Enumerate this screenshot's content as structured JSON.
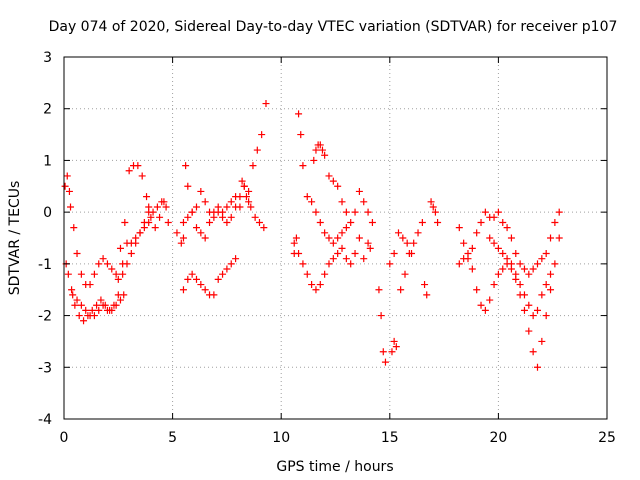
{
  "chart_data": {
    "type": "scatter",
    "title": "Day 074 of 2020, Sidereal Day-to-day VTEC variation (SDTVAR) for receiver p107",
    "xlabel": "GPS time / hours",
    "ylabel": "SDTVAR / TECUs",
    "xlim": [
      0,
      25
    ],
    "ylim": [
      -4,
      3
    ],
    "xticks": [
      "0",
      "5",
      "10",
      "15",
      "20",
      "25"
    ],
    "yticks": [
      "-4",
      "-3",
      "-2",
      "-1",
      "0",
      "1",
      "2",
      "3"
    ],
    "grid": true,
    "legend": "none",
    "marker": "+",
    "colors": {
      "series": "#ff0000",
      "grid": "#a0a0a0",
      "axis": "#000000"
    },
    "series": [
      {
        "name": "SDTVAR",
        "x": [
          0.05,
          0.15,
          0.25,
          0.3,
          0.45,
          0.6,
          0.8,
          1.0,
          1.2,
          1.4,
          1.6,
          1.8,
          2.0,
          2.2,
          2.4,
          2.6,
          2.8,
          3.0,
          3.2,
          3.4,
          3.6,
          3.8,
          3.9,
          4.0,
          4.2,
          4.4,
          4.6,
          4.8,
          0.1,
          0.2,
          0.35,
          0.5,
          0.7,
          0.9,
          1.1,
          1.3,
          1.5,
          1.7,
          1.9,
          2.1,
          2.3,
          2.5,
          2.7,
          2.9,
          3.1,
          3.3,
          3.5,
          3.7,
          3.9,
          4.1,
          4.3,
          4.5,
          4.7,
          0.4,
          0.6,
          0.8,
          1.0,
          1.2,
          1.4,
          1.6,
          1.8,
          2.0,
          2.2,
          2.4,
          2.6,
          2.75,
          2.5,
          2.7,
          2.9,
          3.1,
          3.3,
          3.5,
          3.7,
          3.9,
          5.2,
          5.4,
          5.5,
          5.6,
          5.7,
          5.9,
          6.1,
          6.3,
          6.5,
          6.7,
          6.9,
          7.1,
          7.3,
          7.5,
          7.7,
          7.9,
          8.1,
          8.3,
          8.5,
          8.7,
          8.9,
          9.1,
          9.3,
          5.5,
          5.7,
          5.9,
          6.1,
          6.3,
          6.5,
          6.7,
          6.9,
          7.1,
          7.3,
          7.5,
          7.7,
          7.9,
          8.1,
          8.3,
          8.5,
          5.5,
          5.7,
          5.9,
          6.1,
          6.3,
          6.5,
          6.7,
          6.9,
          7.1,
          7.3,
          7.5,
          7.7,
          7.9,
          8.2,
          8.4,
          8.6,
          8.8,
          9.0,
          9.2,
          10.6,
          10.7,
          10.8,
          10.9,
          11.0,
          11.2,
          11.4,
          11.6,
          11.8,
          12.0,
          12.2,
          12.4,
          12.6,
          12.8,
          13.0,
          13.2,
          13.4,
          13.6,
          13.8,
          14.0,
          14.2,
          10.6,
          10.8,
          11.0,
          11.2,
          11.4,
          11.6,
          11.8,
          12.0,
          12.2,
          12.4,
          12.6,
          12.8,
          13.0,
          13.2,
          13.4,
          13.6,
          13.8,
          14.0,
          11.5,
          11.6,
          11.7,
          11.8,
          11.9,
          12.0,
          12.2,
          12.4,
          12.6,
          12.8,
          13.0,
          14.1,
          14.5,
          14.6,
          14.7,
          14.8,
          15.0,
          15.1,
          15.2,
          15.3,
          15.5,
          15.7,
          15.9,
          16.1,
          16.3,
          16.5,
          16.6,
          16.7,
          15.2,
          15.4,
          15.6,
          15.8,
          16.0,
          16.9,
          17.0,
          17.1,
          17.2,
          18.2,
          18.4,
          18.6,
          18.8,
          19.0,
          19.2,
          19.4,
          19.6,
          19.8,
          20.0,
          20.2,
          20.4,
          20.6,
          20.8,
          21.0,
          21.2,
          21.4,
          21.6,
          21.8,
          22.0,
          22.2,
          22.4,
          22.6,
          22.8,
          18.2,
          18.4,
          18.6,
          18.8,
          19.0,
          19.2,
          19.4,
          19.6,
          19.8,
          20.0,
          20.2,
          20.4,
          20.6,
          20.8,
          21.0,
          21.2,
          21.4,
          21.6,
          21.8,
          22.0,
          22.2,
          22.4,
          22.6,
          22.8,
          19.6,
          19.8,
          20.0,
          20.2,
          20.4,
          20.6,
          20.8,
          21.0,
          21.2,
          21.4,
          21.6,
          21.8,
          22.0,
          22.2,
          22.4
        ],
        "y": [
          0.5,
          0.7,
          0.4,
          0.1,
          -0.3,
          -0.8,
          -1.2,
          -1.4,
          -1.4,
          -1.2,
          -1.0,
          -0.9,
          -1.0,
          -1.1,
          -1.2,
          -0.7,
          -0.2,
          0.8,
          0.9,
          0.9,
          0.7,
          0.3,
          0.1,
          -0.1,
          -0.3,
          -0.1,
          0.2,
          -0.2,
          -1.0,
          -1.2,
          -1.5,
          -1.8,
          -2.0,
          -2.1,
          -2.0,
          -1.9,
          -1.8,
          -1.7,
          -1.8,
          -1.9,
          -1.8,
          -1.6,
          -1.0,
          -0.6,
          -0.6,
          -0.5,
          -0.4,
          -0.3,
          -0.2,
          0.0,
          0.1,
          0.2,
          0.1,
          -1.6,
          -1.7,
          -1.8,
          -1.9,
          -2.0,
          -2.0,
          -1.9,
          -1.8,
          -1.9,
          -1.9,
          -1.8,
          -1.7,
          -1.6,
          -1.3,
          -1.2,
          -1.0,
          -0.8,
          -0.6,
          -0.4,
          -0.2,
          0.0,
          -0.4,
          -0.6,
          -0.5,
          0.9,
          0.5,
          0.0,
          -0.3,
          -0.4,
          -0.5,
          -0.2,
          0.0,
          0.1,
          0.0,
          0.1,
          0.2,
          0.3,
          0.1,
          0.5,
          0.4,
          0.9,
          1.2,
          1.5,
          2.1,
          -0.2,
          -0.1,
          0.0,
          0.1,
          0.4,
          0.2,
          0.0,
          -0.1,
          0.0,
          -0.1,
          -0.2,
          -0.1,
          0.1,
          0.3,
          0.5,
          0.2,
          -1.5,
          -1.3,
          -1.2,
          -1.3,
          -1.4,
          -1.5,
          -1.6,
          -1.6,
          -1.3,
          -1.2,
          -1.1,
          -1.0,
          -0.9,
          0.6,
          0.3,
          0.1,
          -0.1,
          -0.2,
          -0.3,
          -0.8,
          -0.5,
          1.9,
          1.5,
          0.9,
          0.3,
          0.2,
          0.0,
          -0.2,
          -0.4,
          -0.5,
          -0.6,
          -0.5,
          -0.4,
          -0.3,
          -0.2,
          0.0,
          0.4,
          0.2,
          0.0,
          -0.2,
          -0.6,
          -0.8,
          -1.0,
          -1.2,
          -1.4,
          -1.5,
          -1.4,
          -1.2,
          -1.0,
          -0.9,
          -0.8,
          -0.7,
          -0.9,
          -1.0,
          -0.8,
          -0.5,
          -0.9,
          -0.6,
          1.0,
          1.2,
          1.3,
          1.3,
          1.2,
          1.1,
          0.7,
          0.6,
          0.5,
          0.2,
          0.0,
          -0.7,
          -1.5,
          -2.0,
          -2.7,
          -2.9,
          -1.0,
          -2.7,
          -2.5,
          -2.6,
          -1.5,
          -1.2,
          -0.8,
          -0.6,
          -0.4,
          -0.2,
          -1.4,
          -1.6,
          -0.8,
          -0.4,
          -0.5,
          -0.6,
          -0.8,
          0.2,
          0.1,
          0.0,
          -0.2,
          -0.3,
          -0.6,
          -0.9,
          -1.1,
          -1.5,
          -1.8,
          -1.9,
          -1.7,
          -1.4,
          -1.2,
          -1.1,
          -1.0,
          -1.1,
          -1.3,
          -1.6,
          -1.9,
          -2.3,
          -2.7,
          -3.0,
          -2.5,
          -2.0,
          -1.5,
          -1.0,
          -0.5,
          -1.0,
          -0.9,
          -0.8,
          -0.7,
          -0.4,
          -0.2,
          0.0,
          -0.1,
          -0.1,
          0.0,
          -0.2,
          -0.3,
          -0.5,
          -0.8,
          -1.0,
          -1.1,
          -1.2,
          -1.1,
          -1.0,
          -0.9,
          -0.8,
          -0.5,
          -0.2,
          0.0,
          -0.5,
          -0.6,
          -0.7,
          -0.8,
          -0.9,
          -1.0,
          -1.2,
          -1.4,
          -1.6,
          -1.8,
          -2.0,
          -1.9,
          -1.6,
          -1.4,
          -1.2
        ]
      }
    ]
  }
}
